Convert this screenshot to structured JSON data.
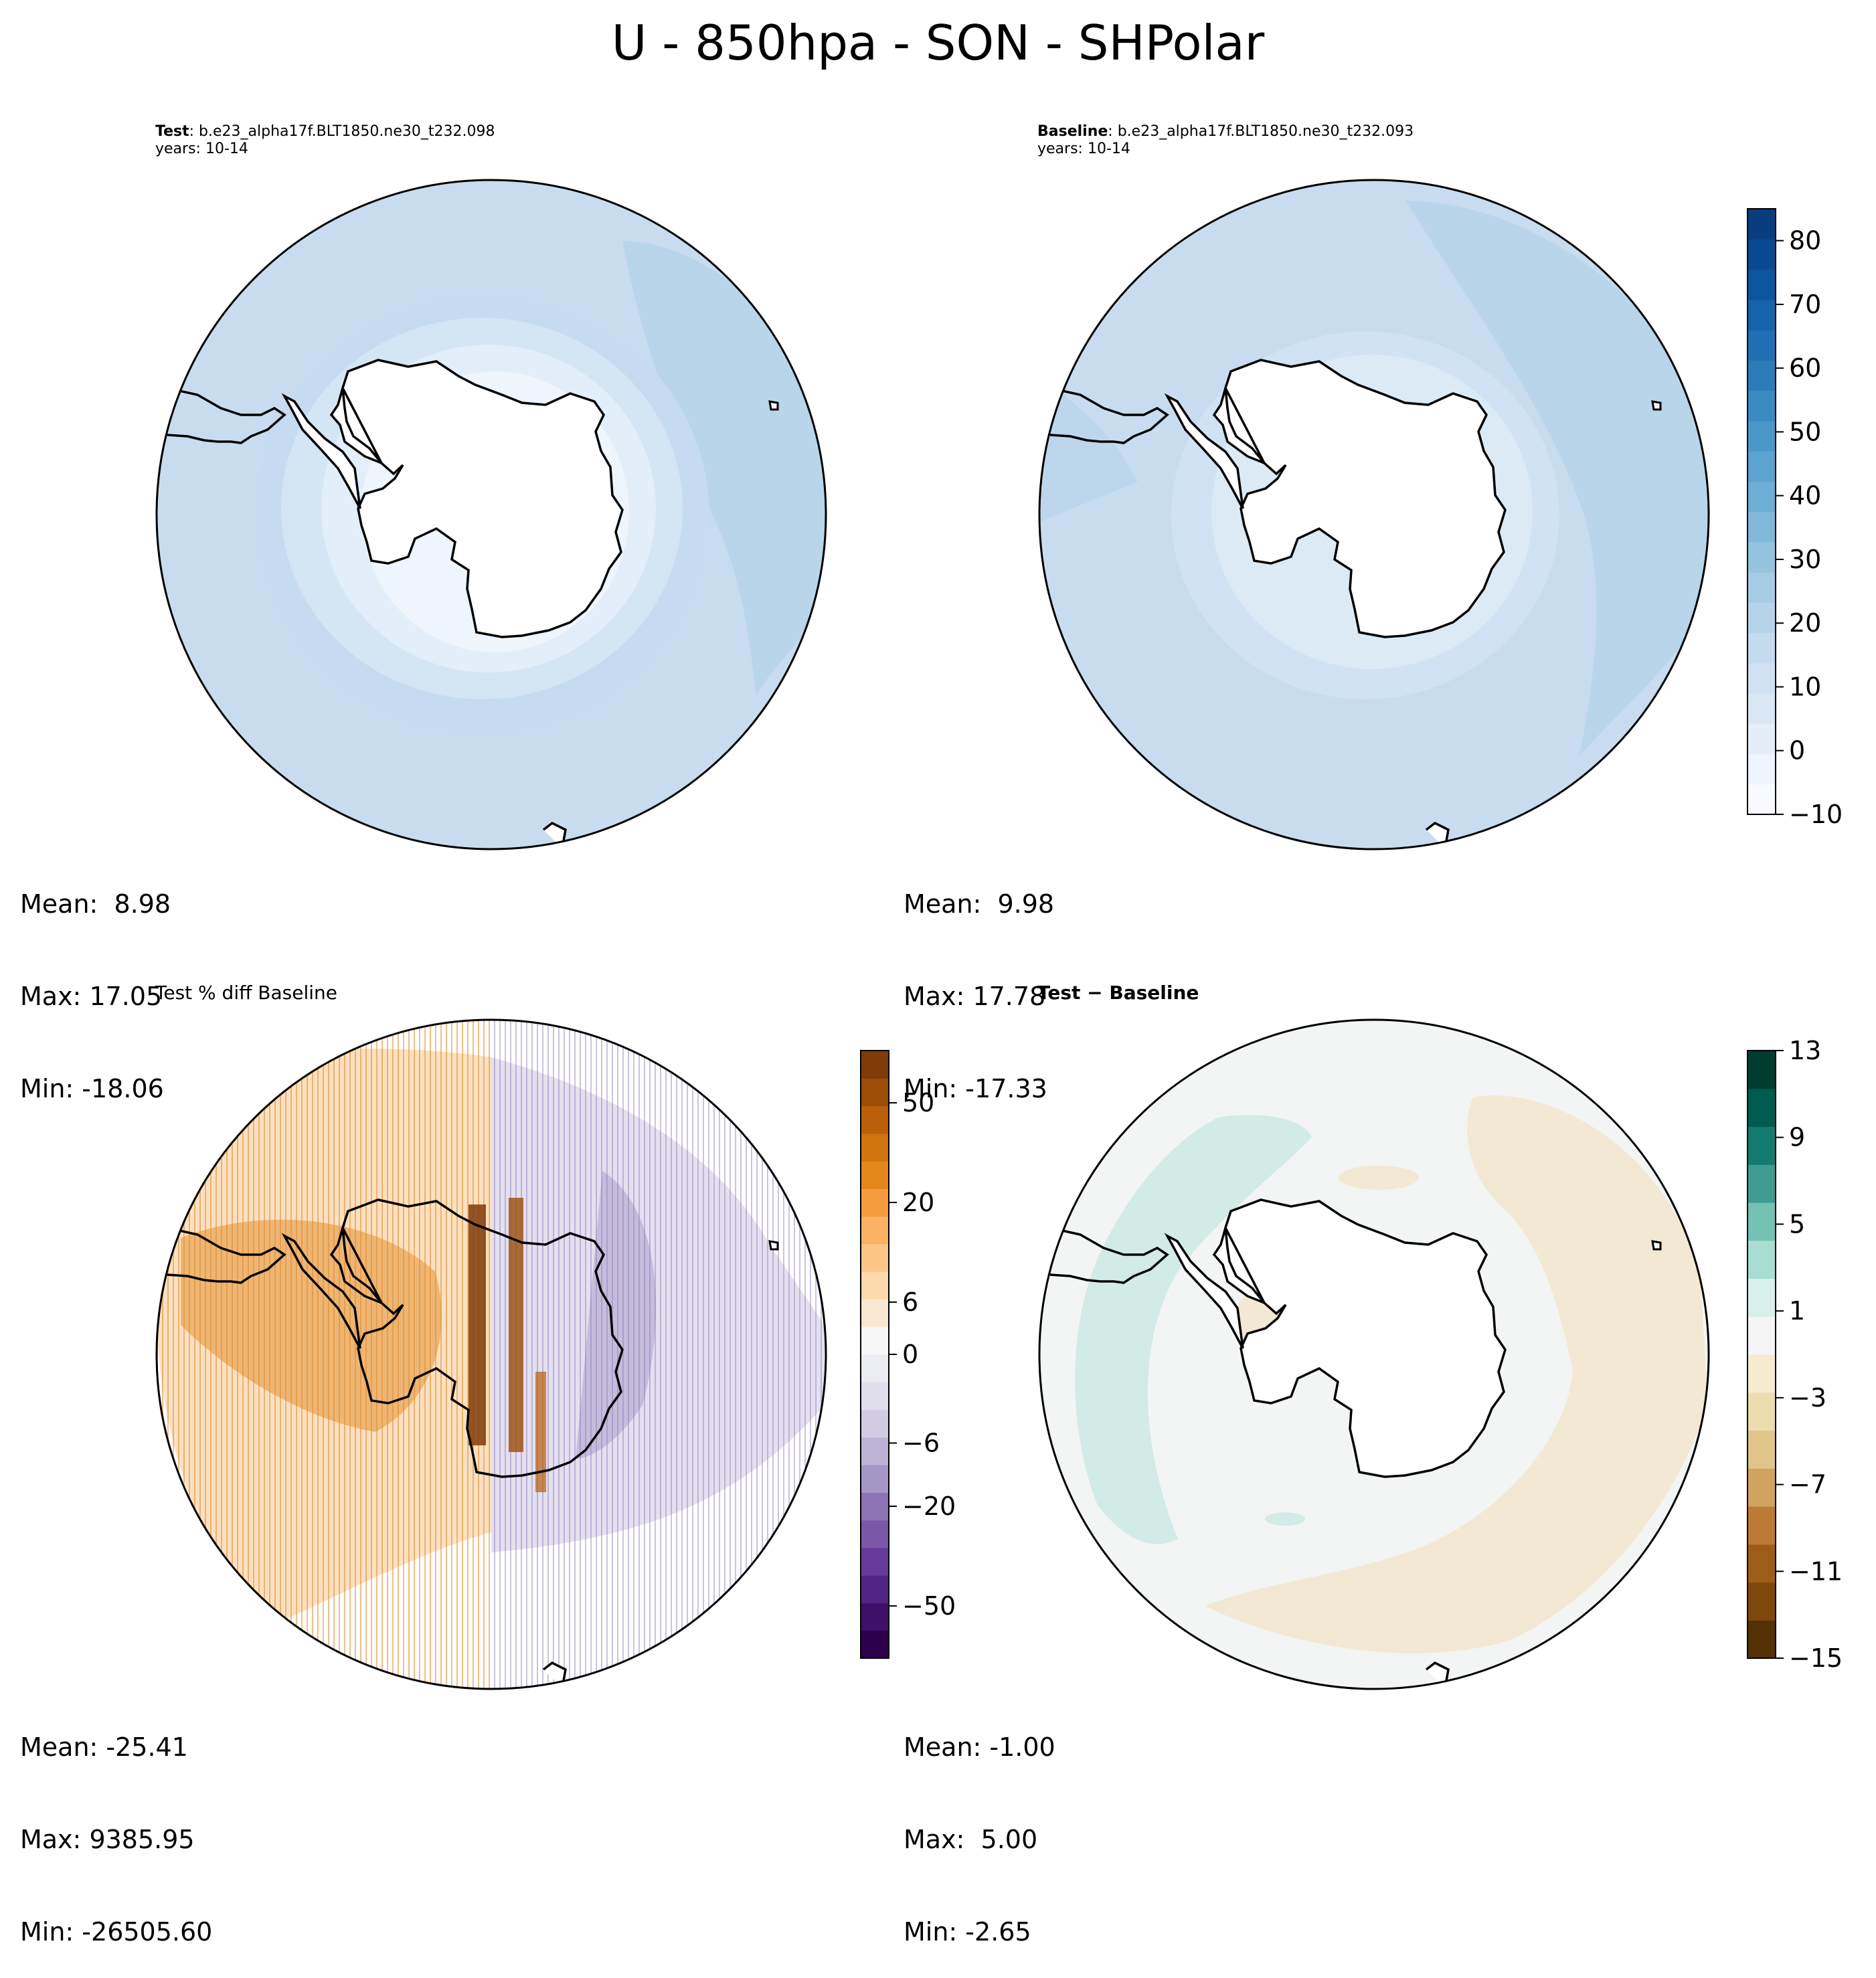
{
  "figure": {
    "title": "U - 850hpa - SON - SHPolar"
  },
  "panels": {
    "test": {
      "title_bold": "Test",
      "title_rest": ": b.e23_alpha17f.BLT1850.ne30_t232.098",
      "years": "years: 10-14",
      "stats": {
        "mean": "Mean:  8.98",
        "max": "Max: 17.05",
        "min": "Min: -18.06"
      }
    },
    "baseline": {
      "title_bold": "Baseline",
      "title_rest": ": b.e23_alpha17f.BLT1850.ne30_t232.093",
      "years": "years: 10-14",
      "stats": {
        "mean": "Mean:  9.98",
        "max": "Max: 17.78",
        "min": "Min: -17.33"
      }
    },
    "pctdiff": {
      "title": "Test % diff Baseline",
      "stats": {
        "mean": "Mean: -25.41",
        "max": "Max: 9385.95",
        "min": "Min: -26505.60"
      }
    },
    "diff": {
      "title_bold": "Test − Baseline",
      "stats": {
        "mean": "Mean: -1.00",
        "max": "Max:  5.00",
        "min": "Min: -2.65"
      }
    }
  },
  "chart_data": [
    {
      "type": "heatmap",
      "panel": "Test",
      "projection": "south polar stereographic",
      "colorscale": "Blues",
      "levels_range": [
        -10,
        85
      ],
      "stats": {
        "mean": 8.98,
        "max": 17.05,
        "min": -18.06
      }
    },
    {
      "type": "heatmap",
      "panel": "Baseline",
      "projection": "south polar stereographic",
      "colorscale": "Blues",
      "levels_range": [
        -10,
        85
      ],
      "stats": {
        "mean": 9.98,
        "max": 17.78,
        "min": -17.33
      }
    },
    {
      "type": "heatmap",
      "panel": "Test % diff Baseline",
      "projection": "south polar stereographic",
      "colorscale": "PuOr_r",
      "stats": {
        "mean": -25.41,
        "max": 9385.95,
        "min": -26505.6
      }
    },
    {
      "type": "heatmap",
      "panel": "Test − Baseline",
      "projection": "south polar stereographic",
      "colorscale": "BrBG",
      "levels_range": [
        -15,
        13
      ],
      "stats": {
        "mean": -1.0,
        "max": 5.0,
        "min": -2.65
      }
    }
  ],
  "colorbars": {
    "shared": {
      "ticks": [
        "80",
        "70",
        "60",
        "50",
        "40",
        "30",
        "20",
        "10",
        "0",
        "−10"
      ],
      "tick_values": [
        80,
        70,
        60,
        50,
        40,
        30,
        20,
        10,
        0,
        -10
      ],
      "range": [
        -10,
        85
      ],
      "colors": [
        "#f7fbff",
        "#eef5fc",
        "#e3eef9",
        "#d9e7f5",
        "#cfe1f2",
        "#c4daee",
        "#b5d4e9",
        "#a6cce4",
        "#94c4df",
        "#80b9da",
        "#6caed6",
        "#5ba3d0",
        "#4a98c9",
        "#3a8bc2",
        "#2c7cba",
        "#206fb4",
        "#1563aa",
        "#0b559f",
        "#084a91",
        "#083d7f"
      ]
    },
    "pctdiff": {
      "ticks": [
        "50",
        "20",
        "6",
        "0",
        "−6",
        "−20",
        "−50"
      ],
      "tick_positions": [
        0.914,
        0.75,
        0.586,
        0.5,
        0.354,
        0.25,
        0.086
      ],
      "colors": [
        "#2d004b",
        "#3f0f6a",
        "#522483",
        "#66399a",
        "#7a57a8",
        "#8e73b5",
        "#a596c7",
        "#bcb3d6",
        "#d1cce4",
        "#e1dfee",
        "#ececf3",
        "#f7f7f7",
        "#fbe8d3",
        "#fed9ae",
        "#fdc689",
        "#fdb163",
        "#f59d3e",
        "#e4871a",
        "#cf740f",
        "#b96009",
        "#9c4d08",
        "#7f3b08"
      ]
    },
    "diff": {
      "ticks": [
        "13",
        "9",
        "5",
        "1",
        "−3",
        "−7",
        "−11",
        "−15"
      ],
      "tick_values": [
        13,
        9,
        5,
        1,
        -3,
        -7,
        -11,
        -15
      ],
      "range": [
        -15,
        13
      ],
      "colors": [
        "#543005",
        "#7f480b",
        "#9e5d17",
        "#bd7a35",
        "#d0a35f",
        "#e1c489",
        "#eddcad",
        "#f6ead0",
        "#f4f5f4",
        "#d8efea",
        "#a8ddd2",
        "#74c2b4",
        "#3e9c92",
        "#137a70",
        "#005b50",
        "#003c30"
      ]
    }
  },
  "colors": {
    "ocean_blue": "#c9dcef",
    "ocean_blue_dark": "#b9d5ea",
    "ocean_blue_light": "#dceaf6",
    "diff_neutral": "#f3f5f4",
    "diff_tan": "#f3e8d3",
    "diff_teal": "#d2ebe6",
    "pct_orange": "#e58f26",
    "pct_purple": "#8d7ab8",
    "land": "#ffffff"
  }
}
